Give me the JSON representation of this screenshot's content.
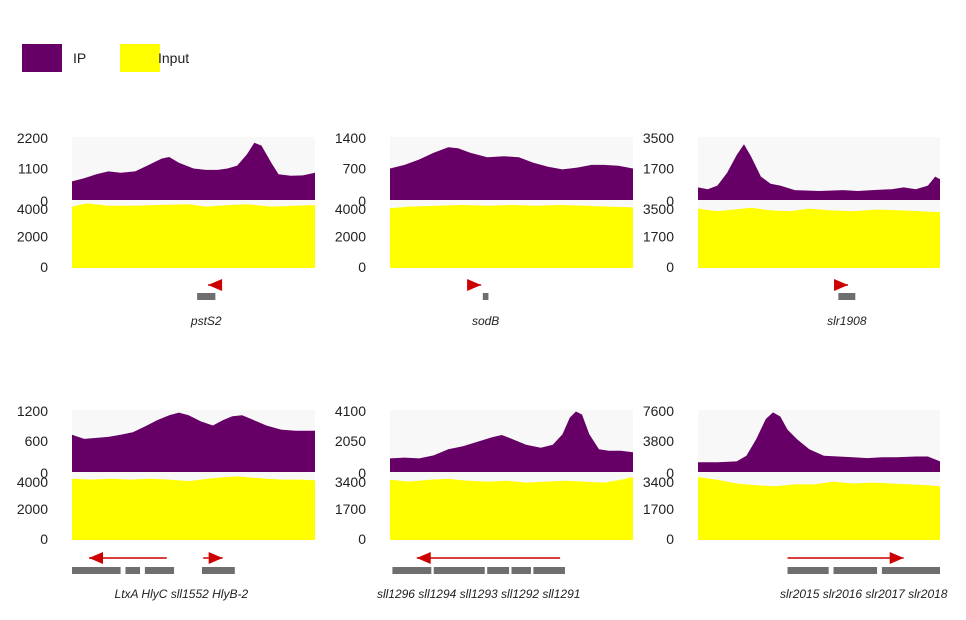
{
  "legend": [
    {
      "name": "IP",
      "color": "#660066"
    },
    {
      "name": "Input",
      "color": "#ffff00"
    }
  ],
  "chart_data": [
    {
      "type": "area",
      "ip": {
        "yticks": [
          "2200",
          "1100",
          "0"
        ],
        "ylim": [
          0,
          2200
        ],
        "profile": [
          [
            0,
            650
          ],
          [
            0.05,
            760
          ],
          [
            0.1,
            900
          ],
          [
            0.15,
            1000
          ],
          [
            0.2,
            950
          ],
          [
            0.26,
            1000
          ],
          [
            0.31,
            1200
          ],
          [
            0.37,
            1450
          ],
          [
            0.4,
            1500
          ],
          [
            0.44,
            1300
          ],
          [
            0.5,
            1100
          ],
          [
            0.55,
            1050
          ],
          [
            0.6,
            1050
          ],
          [
            0.64,
            1100
          ],
          [
            0.68,
            1200
          ],
          [
            0.72,
            1600
          ],
          [
            0.75,
            2000
          ],
          [
            0.78,
            1900
          ],
          [
            0.82,
            1300
          ],
          [
            0.85,
            900
          ],
          [
            0.9,
            850
          ],
          [
            0.95,
            860
          ],
          [
            1,
            950
          ]
        ]
      },
      "input": {
        "yticks": [
          "4000",
          "2000",
          "0"
        ],
        "ylim": [
          0,
          4000
        ],
        "profile": [
          [
            0,
            3900
          ],
          [
            0.06,
            4100
          ],
          [
            0.15,
            3950
          ],
          [
            0.25,
            3950
          ],
          [
            0.35,
            4000
          ],
          [
            0.48,
            4050
          ],
          [
            0.55,
            3900
          ],
          [
            0.65,
            4000
          ],
          [
            0.72,
            4050
          ],
          [
            0.82,
            3900
          ],
          [
            0.92,
            3950
          ],
          [
            1,
            4000
          ]
        ]
      },
      "arrows": [
        {
          "start": 0.59,
          "end": 0.56,
          "dir": "left"
        }
      ],
      "genes": [
        {
          "start": 0.515,
          "end": 0.59
        }
      ],
      "gene_labels": "pstS2"
    },
    {
      "type": "area",
      "ip": {
        "yticks": [
          "1400",
          "700",
          "0"
        ],
        "ylim": [
          0,
          1400
        ],
        "profile": [
          [
            0,
            700
          ],
          [
            0.06,
            780
          ],
          [
            0.12,
            900
          ],
          [
            0.18,
            1050
          ],
          [
            0.24,
            1170
          ],
          [
            0.28,
            1150
          ],
          [
            0.33,
            1050
          ],
          [
            0.4,
            950
          ],
          [
            0.47,
            970
          ],
          [
            0.53,
            950
          ],
          [
            0.59,
            830
          ],
          [
            0.65,
            740
          ],
          [
            0.71,
            680
          ],
          [
            0.77,
            720
          ],
          [
            0.83,
            780
          ],
          [
            0.88,
            780
          ],
          [
            0.94,
            760
          ],
          [
            1,
            700
          ]
        ]
      },
      "input": {
        "yticks": [
          "4000",
          "2000",
          "0"
        ],
        "ylim": [
          0,
          4000
        ],
        "profile": [
          [
            0,
            3800
          ],
          [
            0.08,
            3900
          ],
          [
            0.2,
            3950
          ],
          [
            0.3,
            4000
          ],
          [
            0.4,
            3950
          ],
          [
            0.5,
            4000
          ],
          [
            0.6,
            3950
          ],
          [
            0.7,
            4000
          ],
          [
            0.8,
            3950
          ],
          [
            0.9,
            3900
          ],
          [
            1,
            3850
          ]
        ]
      },
      "arrows": [
        {
          "start": 0.355,
          "end": 0.375,
          "dir": "right"
        }
      ],
      "genes": [
        {
          "start": 0.382,
          "end": 0.405
        }
      ],
      "gene_labels": "sodB"
    },
    {
      "type": "area",
      "ip": {
        "yticks": [
          "3500",
          "1700",
          "0"
        ],
        "ylim": [
          0,
          3500
        ],
        "profile": [
          [
            0,
            700
          ],
          [
            0.04,
            600
          ],
          [
            0.08,
            800
          ],
          [
            0.12,
            1500
          ],
          [
            0.16,
            2500
          ],
          [
            0.19,
            3100
          ],
          [
            0.22,
            2400
          ],
          [
            0.26,
            1300
          ],
          [
            0.3,
            900
          ],
          [
            0.34,
            800
          ],
          [
            0.4,
            550
          ],
          [
            0.5,
            500
          ],
          [
            0.6,
            550
          ],
          [
            0.66,
            500
          ],
          [
            0.72,
            550
          ],
          [
            0.8,
            600
          ],
          [
            0.85,
            700
          ],
          [
            0.9,
            600
          ],
          [
            0.95,
            800
          ],
          [
            0.98,
            1300
          ],
          [
            1,
            1150
          ]
        ]
      },
      "input": {
        "yticks": [
          "3500",
          "1700",
          "0"
        ],
        "ylim": [
          0,
          3500
        ],
        "profile": [
          [
            0,
            3300
          ],
          [
            0.08,
            3150
          ],
          [
            0.15,
            3250
          ],
          [
            0.22,
            3350
          ],
          [
            0.3,
            3200
          ],
          [
            0.38,
            3150
          ],
          [
            0.46,
            3300
          ],
          [
            0.55,
            3200
          ],
          [
            0.64,
            3150
          ],
          [
            0.74,
            3250
          ],
          [
            0.84,
            3200
          ],
          [
            0.92,
            3150
          ],
          [
            1,
            3100
          ]
        ]
      },
      "arrows": [
        {
          "start": 0.565,
          "end": 0.62,
          "dir": "right"
        }
      ],
      "genes": [
        {
          "start": 0.58,
          "end": 0.65
        }
      ],
      "gene_labels": "slr1908"
    },
    {
      "type": "area",
      "ip": {
        "yticks": [
          "1200",
          "600",
          "0"
        ],
        "ylim": [
          0,
          1200
        ],
        "profile": [
          [
            0,
            720
          ],
          [
            0.05,
            640
          ],
          [
            0.1,
            660
          ],
          [
            0.15,
            680
          ],
          [
            0.2,
            720
          ],
          [
            0.25,
            770
          ],
          [
            0.3,
            880
          ],
          [
            0.35,
            1000
          ],
          [
            0.4,
            1100
          ],
          [
            0.44,
            1150
          ],
          [
            0.48,
            1100
          ],
          [
            0.53,
            980
          ],
          [
            0.58,
            900
          ],
          [
            0.62,
            1000
          ],
          [
            0.66,
            1080
          ],
          [
            0.7,
            1100
          ],
          [
            0.74,
            1020
          ],
          [
            0.8,
            900
          ],
          [
            0.86,
            820
          ],
          [
            0.92,
            800
          ],
          [
            1,
            800
          ]
        ]
      },
      "input": {
        "yticks": [
          "4000",
          "2000",
          "0"
        ],
        "ylim": [
          0,
          4000
        ],
        "profile": [
          [
            0,
            3950
          ],
          [
            0.08,
            3900
          ],
          [
            0.16,
            3950
          ],
          [
            0.24,
            3900
          ],
          [
            0.32,
            3950
          ],
          [
            0.4,
            3900
          ],
          [
            0.48,
            3800
          ],
          [
            0.56,
            3950
          ],
          [
            0.62,
            4050
          ],
          [
            0.68,
            4100
          ],
          [
            0.76,
            4000
          ],
          [
            0.86,
            3900
          ],
          [
            0.94,
            3900
          ],
          [
            1,
            3850
          ]
        ]
      },
      "arrows": [
        {
          "start": 0.39,
          "end": 0.07,
          "dir": "left"
        },
        {
          "start": 0.54,
          "end": 0.62,
          "dir": "right"
        }
      ],
      "genes": [
        {
          "start": 0.0,
          "end": 0.2
        },
        {
          "start": 0.22,
          "end": 0.28
        },
        {
          "start": 0.3,
          "end": 0.42
        },
        {
          "start": 0.535,
          "end": 0.67
        }
      ],
      "gene_labels": "LtxA HlyC sll1552      HlyB-2"
    },
    {
      "type": "area",
      "ip": {
        "yticks": [
          "4100",
          "2050",
          "0"
        ],
        "ylim": [
          0,
          4100
        ],
        "profile": [
          [
            0,
            900
          ],
          [
            0.06,
            950
          ],
          [
            0.12,
            900
          ],
          [
            0.18,
            1100
          ],
          [
            0.24,
            1500
          ],
          [
            0.3,
            1700
          ],
          [
            0.36,
            2000
          ],
          [
            0.42,
            2300
          ],
          [
            0.46,
            2450
          ],
          [
            0.5,
            2200
          ],
          [
            0.56,
            1800
          ],
          [
            0.62,
            1600
          ],
          [
            0.67,
            1800
          ],
          [
            0.71,
            2500
          ],
          [
            0.74,
            3600
          ],
          [
            0.765,
            4000
          ],
          [
            0.79,
            3800
          ],
          [
            0.82,
            2500
          ],
          [
            0.86,
            1500
          ],
          [
            0.9,
            1400
          ],
          [
            0.95,
            1400
          ],
          [
            1,
            1300
          ]
        ]
      },
      "input": {
        "yticks": [
          "3400",
          "1700",
          "0"
        ],
        "ylim": [
          0,
          3400
        ],
        "profile": [
          [
            0,
            3300
          ],
          [
            0.08,
            3200
          ],
          [
            0.16,
            3300
          ],
          [
            0.24,
            3350
          ],
          [
            0.32,
            3250
          ],
          [
            0.4,
            3200
          ],
          [
            0.48,
            3250
          ],
          [
            0.56,
            3150
          ],
          [
            0.64,
            3200
          ],
          [
            0.72,
            3250
          ],
          [
            0.8,
            3200
          ],
          [
            0.88,
            3150
          ],
          [
            0.95,
            3300
          ],
          [
            1,
            3450
          ]
        ]
      },
      "arrows": [
        {
          "start": 0.7,
          "end": 0.11,
          "dir": "left"
        }
      ],
      "genes": [
        {
          "start": 0.01,
          "end": 0.17
        },
        {
          "start": 0.18,
          "end": 0.39
        },
        {
          "start": 0.4,
          "end": 0.49
        },
        {
          "start": 0.5,
          "end": 0.58
        },
        {
          "start": 0.59,
          "end": 0.72
        }
      ],
      "gene_labels": "sll1296 sll1294 sll1293 sll1292 sll1291"
    },
    {
      "type": "area",
      "ip": {
        "yticks": [
          "7600",
          "3800",
          "0"
        ],
        "ylim": [
          0,
          7600
        ],
        "profile": [
          [
            0,
            1200
          ],
          [
            0.08,
            1200
          ],
          [
            0.16,
            1300
          ],
          [
            0.2,
            2000
          ],
          [
            0.24,
            4000
          ],
          [
            0.28,
            6500
          ],
          [
            0.31,
            7300
          ],
          [
            0.34,
            6800
          ],
          [
            0.37,
            5200
          ],
          [
            0.41,
            4000
          ],
          [
            0.46,
            2800
          ],
          [
            0.52,
            2000
          ],
          [
            0.58,
            1900
          ],
          [
            0.64,
            1800
          ],
          [
            0.7,
            1700
          ],
          [
            0.76,
            1800
          ],
          [
            0.82,
            1800
          ],
          [
            0.9,
            1900
          ],
          [
            0.95,
            1900
          ],
          [
            1,
            1300
          ]
        ]
      },
      "input": {
        "yticks": [
          "3400",
          "1700",
          "0"
        ],
        "ylim": [
          0,
          3400
        ],
        "profile": [
          [
            0,
            3450
          ],
          [
            0.08,
            3300
          ],
          [
            0.16,
            3100
          ],
          [
            0.24,
            3000
          ],
          [
            0.32,
            2950
          ],
          [
            0.4,
            3050
          ],
          [
            0.48,
            3050
          ],
          [
            0.56,
            3200
          ],
          [
            0.64,
            3100
          ],
          [
            0.72,
            3150
          ],
          [
            0.8,
            3100
          ],
          [
            0.88,
            3050
          ],
          [
            0.95,
            3000
          ],
          [
            1,
            2950
          ]
        ]
      },
      "arrows": [
        {
          "start": 0.37,
          "end": 0.85,
          "dir": "right"
        }
      ],
      "genes": [
        {
          "start": 0.37,
          "end": 0.54
        },
        {
          "start": 0.56,
          "end": 0.74
        },
        {
          "start": 0.76,
          "end": 1.0
        }
      ],
      "gene_labels": "slr2015 slr2016 slr2017 slr2018"
    }
  ]
}
